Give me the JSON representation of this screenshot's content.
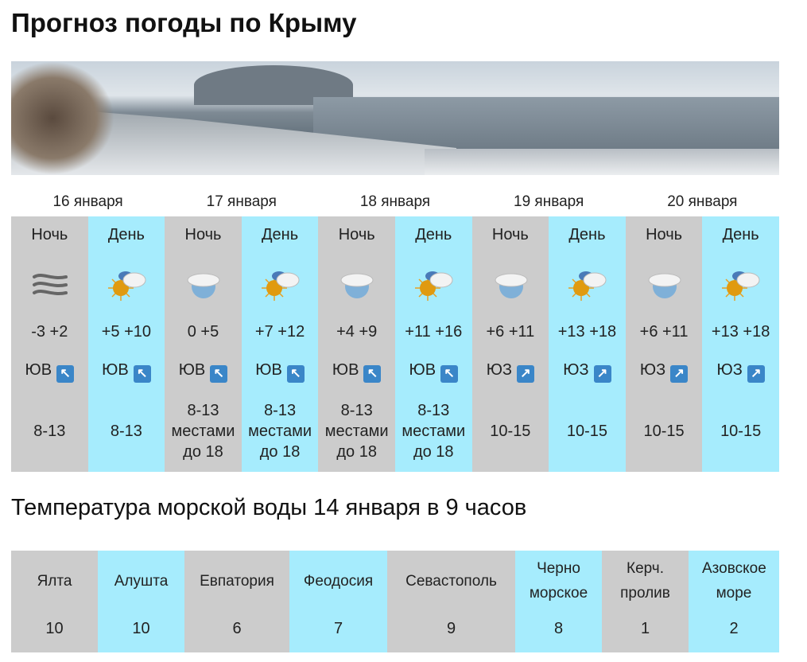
{
  "title": "Прогноз погоды по Крыму",
  "forecast": {
    "days": [
      {
        "date": "16 января",
        "periods": [
          {
            "period": "Ночь",
            "icon": "wind-icon",
            "temp": "-3 +2",
            "wind_dir": "ЮВ",
            "arrow": "↖",
            "wind_speed": "8-13"
          },
          {
            "period": "День",
            "icon": "sun-cloud-icon",
            "temp": "+5 +10",
            "wind_dir": "ЮВ",
            "arrow": "↖",
            "wind_speed": "8-13"
          }
        ]
      },
      {
        "date": "17 января",
        "periods": [
          {
            "period": "Ночь",
            "icon": "moon-cloud-icon",
            "temp": "0 +5",
            "wind_dir": "ЮВ",
            "arrow": "↖",
            "wind_speed": "8-13 местами до 18"
          },
          {
            "period": "День",
            "icon": "sun-cloud-icon",
            "temp": "+7 +12",
            "wind_dir": "ЮВ",
            "arrow": "↖",
            "wind_speed": "8-13 местами до 18"
          }
        ]
      },
      {
        "date": "18 января",
        "periods": [
          {
            "period": "Ночь",
            "icon": "moon-cloud-icon",
            "temp": "+4 +9",
            "wind_dir": "ЮВ",
            "arrow": "↖",
            "wind_speed": "8-13 местами до 18"
          },
          {
            "period": "День",
            "icon": "sun-cloud-icon",
            "temp": "+11 +16",
            "wind_dir": "ЮВ",
            "arrow": "↖",
            "wind_speed": "8-13 местами до 18"
          }
        ]
      },
      {
        "date": "19 января",
        "periods": [
          {
            "period": "Ночь",
            "icon": "moon-cloud-icon",
            "temp": "+6 +11",
            "wind_dir": "ЮЗ",
            "arrow": "↗",
            "wind_speed": "10-15"
          },
          {
            "period": "День",
            "icon": "sun-cloud-icon",
            "temp": "+13 +18",
            "wind_dir": "ЮЗ",
            "arrow": "↗",
            "wind_speed": "10-15"
          }
        ]
      },
      {
        "date": "20 января",
        "periods": [
          {
            "period": "Ночь",
            "icon": "moon-cloud-icon",
            "temp": "+6 +11",
            "wind_dir": "ЮЗ",
            "arrow": "↗",
            "wind_speed": "10-15"
          },
          {
            "period": "День",
            "icon": "sun-cloud-icon",
            "temp": "+13 +18",
            "wind_dir": "ЮЗ",
            "arrow": "↗",
            "wind_speed": "10-15"
          }
        ]
      }
    ]
  },
  "sea": {
    "title": "Температура морской воды 14 января в 9 часов",
    "places": [
      {
        "name": "Ялта",
        "value": "10"
      },
      {
        "name": "Алушта",
        "value": "10"
      },
      {
        "name": "Евпатория",
        "value": "6"
      },
      {
        "name": "Феодосия",
        "value": "7"
      },
      {
        "name": "Севастополь",
        "value": "9"
      },
      {
        "name": "Черно морское",
        "value": "8"
      },
      {
        "name": "Керч. пролив",
        "value": "1"
      },
      {
        "name": "Азовское море",
        "value": "2"
      }
    ]
  },
  "colors": {
    "night": "#cccccc",
    "day": "#a6ecfd",
    "wind_arrow": "#3a86c8"
  }
}
